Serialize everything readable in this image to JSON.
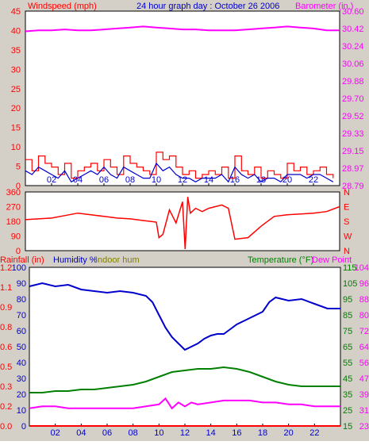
{
  "colors": {
    "wind": "#ff0000",
    "wind_avg": "#0000cc",
    "baro": "#ff00ff",
    "dir": "#ff0000",
    "humidity": "#0000cc",
    "indoor_hum": "#808000",
    "temp": "#008000",
    "dewpt": "#ff00ff",
    "rain": "#ff0000",
    "frame": "#000000",
    "panel_bg": "#ffffff",
    "page_bg": "#d4d0c8"
  },
  "header": {
    "windspeed": "Windspeed (mph)",
    "title": "24 hour graph day : October 26 2006",
    "barometer": "Barometer (in.)"
  },
  "headers2": {
    "rainfall": "Rainfall (in)",
    "humidity": "Humidity %",
    "indoor": "Indoor hum",
    "temperature": "Temperature (°F)",
    "dewpoint": "Dew Point"
  },
  "chart_data": [
    {
      "type": "line",
      "title": "24 hour graph day : October 26 2006",
      "x_ticks": [
        "02",
        "04",
        "06",
        "08",
        "10",
        "12",
        "14",
        "16",
        "18",
        "20",
        "22"
      ],
      "xlim_hours": [
        0,
        24
      ],
      "y_left": {
        "label": "Windspeed (mph)",
        "ticks": [
          "0",
          "5",
          "10",
          "15",
          "20",
          "25",
          "30",
          "35",
          "40",
          "45"
        ],
        "ylim": [
          0,
          47
        ]
      },
      "y_right": {
        "label": "Barometer (in.)",
        "ticks": [
          "28.79",
          "28.97",
          "29.15",
          "29.33",
          "29.52",
          "29.70",
          "29.88",
          "30.06",
          "30.24",
          "30.42",
          "30.60"
        ],
        "ylim": [
          28.79,
          30.6
        ]
      },
      "series": [
        {
          "name": "Windspeed (mph)",
          "axis": "left",
          "style": "step",
          "x": [
            0,
            0.5,
            1,
            1.5,
            2,
            2.5,
            3,
            3.5,
            4,
            4.5,
            5,
            5.5,
            6,
            6.5,
            7,
            7.5,
            8,
            8.5,
            9,
            9.5,
            10,
            10.5,
            11,
            11.5,
            12,
            12.5,
            13,
            13.5,
            14,
            14.5,
            15,
            15.5,
            16,
            16.5,
            17,
            17.5,
            18,
            18.5,
            19,
            19.5,
            20,
            20.5,
            21,
            21.5,
            22,
            22.5,
            23,
            23.5
          ],
          "y": [
            7,
            4,
            8,
            6,
            5,
            3,
            6,
            2,
            4,
            5,
            6,
            4,
            7,
            5,
            3,
            8,
            6,
            5,
            4,
            3,
            9,
            7,
            8,
            5,
            3,
            4,
            2,
            3,
            4,
            3,
            5,
            2,
            8,
            4,
            3,
            5,
            2,
            4,
            3,
            2,
            6,
            4,
            5,
            3,
            4,
            5,
            3,
            2
          ]
        },
        {
          "name": "Average wind",
          "axis": "left",
          "style": "line",
          "x": [
            0,
            0.5,
            1,
            1.5,
            2,
            2.5,
            3,
            3.5,
            4,
            4.5,
            5,
            5.5,
            6,
            6.5,
            7,
            7.5,
            8,
            8.5,
            9,
            9.5,
            10,
            10.5,
            11,
            11.5,
            12,
            12.5,
            13,
            13.5,
            14,
            14.5,
            15,
            15.5,
            16,
            16.5,
            17,
            17.5,
            18,
            18.5,
            19,
            19.5,
            20,
            20.5,
            21,
            21.5,
            22,
            22.5,
            23,
            23.5
          ],
          "y": [
            4,
            3,
            5,
            4,
            3,
            2,
            4,
            1,
            2,
            3,
            4,
            3,
            5,
            3,
            2,
            5,
            4,
            3,
            2,
            2,
            6,
            4,
            5,
            3,
            2,
            2,
            1,
            2,
            2,
            2,
            3,
            1,
            5,
            3,
            2,
            3,
            1,
            2,
            2,
            1,
            3,
            3,
            3,
            2,
            3,
            3,
            2,
            1
          ]
        },
        {
          "name": "Barometer (in.)",
          "axis": "right",
          "style": "line",
          "x": [
            0,
            1,
            2,
            3,
            4,
            5,
            6,
            7,
            8,
            9,
            10,
            11,
            12,
            13,
            14,
            15,
            16,
            17,
            18,
            19,
            20,
            21,
            22,
            23,
            24
          ],
          "y": [
            30.39,
            30.4,
            30.4,
            30.41,
            30.4,
            30.4,
            30.41,
            30.42,
            30.43,
            30.44,
            30.43,
            30.42,
            30.41,
            30.41,
            30.4,
            30.4,
            30.4,
            30.41,
            30.42,
            30.43,
            30.44,
            30.43,
            30.42,
            30.4,
            30.4
          ]
        }
      ]
    },
    {
      "type": "line",
      "title": "",
      "x_ticks": [],
      "xlim_hours": [
        0,
        24
      ],
      "y_left": {
        "label": "",
        "ticks": [
          "0",
          "90",
          "180",
          "270",
          "360"
        ],
        "ylim": [
          0,
          360
        ]
      },
      "y_right": {
        "label": "",
        "ticks": [
          "N",
          "W",
          "S",
          "E",
          "N"
        ]
      },
      "series": [
        {
          "name": "Wind direction",
          "axis": "left",
          "style": "line",
          "x": [
            0,
            1,
            2,
            3,
            4,
            5,
            6,
            7,
            8,
            9,
            10,
            10.2,
            10.5,
            11,
            11.5,
            12,
            12.2,
            12.4,
            12.6,
            13,
            13.5,
            14,
            15,
            15.5,
            16,
            17,
            18,
            19,
            20,
            21,
            22,
            23,
            24
          ],
          "y": [
            190,
            195,
            200,
            215,
            230,
            220,
            210,
            200,
            195,
            185,
            175,
            80,
            100,
            250,
            170,
            300,
            10,
            330,
            230,
            260,
            240,
            260,
            280,
            260,
            70,
            80,
            150,
            210,
            220,
            225,
            230,
            240,
            270
          ]
        }
      ]
    },
    {
      "type": "line",
      "title": "",
      "x_ticks": [
        "02",
        "04",
        "06",
        "08",
        "10",
        "12",
        "14",
        "16",
        "18",
        "20",
        "22"
      ],
      "xlim_hours": [
        0,
        24
      ],
      "y_left_outer": {
        "label": "Rainfall (in)",
        "ticks": [
          "0.0",
          "0.2",
          "0.3",
          "0.5",
          "0.6",
          "0.8",
          "0.9",
          "1.1",
          "1.2"
        ],
        "ylim": [
          0,
          1.2
        ]
      },
      "y_left_inner": {
        "label": "Humidity %",
        "ticks": [
          "0",
          "10",
          "20",
          "30",
          "40",
          "50",
          "60",
          "70",
          "80",
          "90",
          "100"
        ],
        "ylim": [
          0,
          100
        ]
      },
      "y_right_inner": {
        "label": "Temperature (°F)",
        "ticks": [
          "15",
          "25",
          "35",
          "45",
          "55",
          "65",
          "75",
          "85",
          "95",
          "105",
          "115"
        ],
        "ylim": [
          15,
          115
        ]
      },
      "y_right_outer": {
        "label": "Dew Point",
        "ticks": [
          "23",
          "31",
          "39",
          "47",
          "56",
          "64",
          "72",
          "80",
          "88",
          "96",
          "104"
        ],
        "ylim": [
          23,
          104
        ]
      },
      "series": [
        {
          "name": "Humidity %",
          "axis": "left_inner",
          "x": [
            0,
            1,
            2,
            3,
            4,
            5,
            6,
            7,
            8,
            9,
            9.5,
            10,
            10.5,
            11,
            11.5,
            12,
            12.5,
            13,
            13.5,
            14,
            14.5,
            15,
            15.5,
            16,
            17,
            18,
            18.5,
            19,
            20,
            21,
            22,
            23,
            24
          ],
          "y": [
            88,
            90,
            88,
            89,
            86,
            85,
            84,
            85,
            84,
            82,
            78,
            70,
            62,
            56,
            52,
            48,
            50,
            52,
            55,
            57,
            58,
            58,
            61,
            64,
            68,
            72,
            78,
            81,
            79,
            80,
            77,
            74,
            74
          ]
        },
        {
          "name": "Temperature (°F)",
          "axis": "right_inner",
          "x": [
            0,
            1,
            2,
            3,
            4,
            5,
            6,
            7,
            8,
            9,
            10,
            11,
            12,
            13,
            14,
            15,
            16,
            17,
            18,
            19,
            20,
            21,
            22,
            23,
            24
          ],
          "y": [
            36,
            36,
            37,
            37,
            38,
            38,
            39,
            40,
            41,
            43,
            46,
            49,
            50,
            51,
            51,
            52,
            51,
            49,
            46,
            43,
            41,
            40,
            40,
            40,
            40
          ]
        },
        {
          "name": "Dew Point",
          "axis": "right_outer",
          "x": [
            0,
            1,
            2,
            3,
            4,
            5,
            6,
            7,
            8,
            9,
            10,
            10.5,
            11,
            11.5,
            12,
            12.5,
            13,
            14,
            15,
            16,
            17,
            18,
            19,
            20,
            21,
            22,
            23,
            24
          ],
          "y": [
            32,
            33,
            33,
            32,
            32,
            32,
            32,
            32,
            32,
            33,
            34,
            37,
            32,
            35,
            33,
            35,
            34,
            35,
            36,
            36,
            36,
            35,
            35,
            34,
            34,
            33,
            33,
            33
          ]
        },
        {
          "name": "Rainfall (in)",
          "axis": "left_outer",
          "x": [
            0,
            24
          ],
          "y": [
            0,
            0
          ]
        }
      ]
    }
  ]
}
